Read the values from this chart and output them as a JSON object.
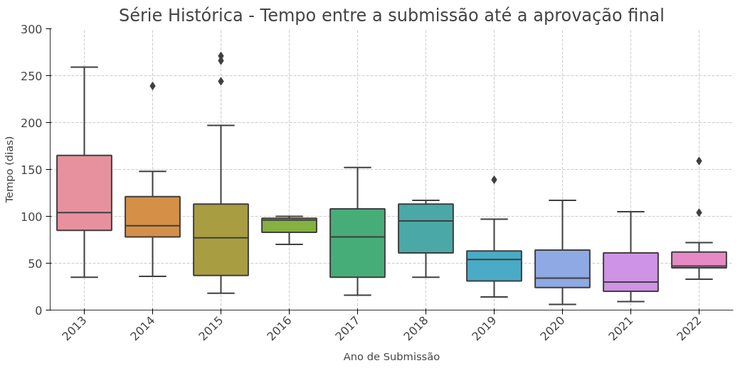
{
  "chart_data": {
    "type": "box",
    "title": "Série Histórica - Tempo entre a submissão até a aprovação final",
    "xlabel": "Ano de Submissão",
    "ylabel": "Tempo (dias)",
    "categories": [
      "2013",
      "2014",
      "2015",
      "2016",
      "2017",
      "2018",
      "2019",
      "2020",
      "2021",
      "2022"
    ],
    "colors": [
      "#e8919e",
      "#d58f47",
      "#a99d42",
      "#84b13f",
      "#47ad78",
      "#4aa9a6",
      "#4aabc6",
      "#8ea9e3",
      "#cf93e6",
      "#e58ac4"
    ],
    "boxes": [
      {
        "low": 35,
        "q1": 85,
        "median": 104,
        "q3": 165,
        "high": 259
      },
      {
        "low": 36,
        "q1": 78,
        "median": 90,
        "q3": 121,
        "high": 148,
        "outliers": [
          239
        ]
      },
      {
        "low": 18,
        "q1": 37,
        "median": 77,
        "q3": 113,
        "high": 197,
        "outliers": [
          244,
          266,
          271
        ]
      },
      {
        "low": 70,
        "q1": 83,
        "median": 96,
        "q3": 98,
        "high": 100
      },
      {
        "low": 16,
        "q1": 35,
        "median": 78,
        "q3": 108,
        "high": 152
      },
      {
        "low": 35,
        "q1": 61,
        "median": 95,
        "q3": 113,
        "high": 117
      },
      {
        "low": 14,
        "q1": 31,
        "median": 54,
        "q3": 63,
        "high": 97,
        "outliers": [
          139
        ]
      },
      {
        "low": 6,
        "q1": 24,
        "median": 34,
        "q3": 64,
        "high": 117
      },
      {
        "low": 9,
        "q1": 20,
        "median": 30,
        "q3": 61,
        "high": 105
      },
      {
        "low": 33,
        "q1": 45,
        "median": 47,
        "q3": 62,
        "high": 72,
        "outliers": [
          104,
          159
        ]
      }
    ],
    "ylim": [
      0,
      300
    ],
    "yticks": [
      0,
      50,
      100,
      150,
      200,
      250,
      300
    ],
    "grid": true,
    "marker": "diamond"
  }
}
